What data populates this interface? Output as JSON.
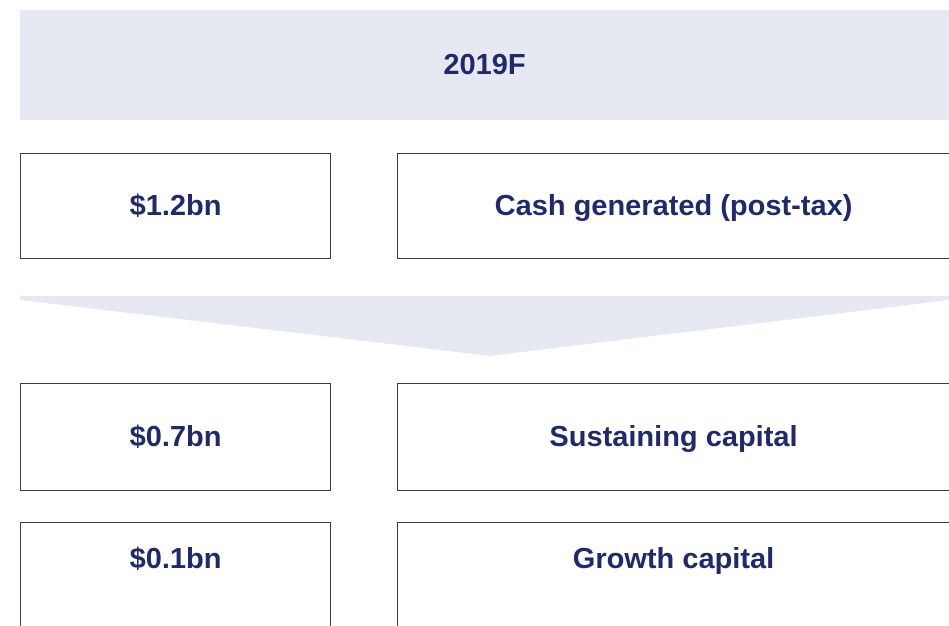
{
  "header": {
    "title": "2019F"
  },
  "rows": [
    {
      "amount": "$1.2bn",
      "label": "Cash generated (post-tax)"
    },
    {
      "amount": "$0.7bn",
      "label": "Sustaining capital"
    },
    {
      "amount": "$0.1bn",
      "label": "Growth capital"
    }
  ]
}
